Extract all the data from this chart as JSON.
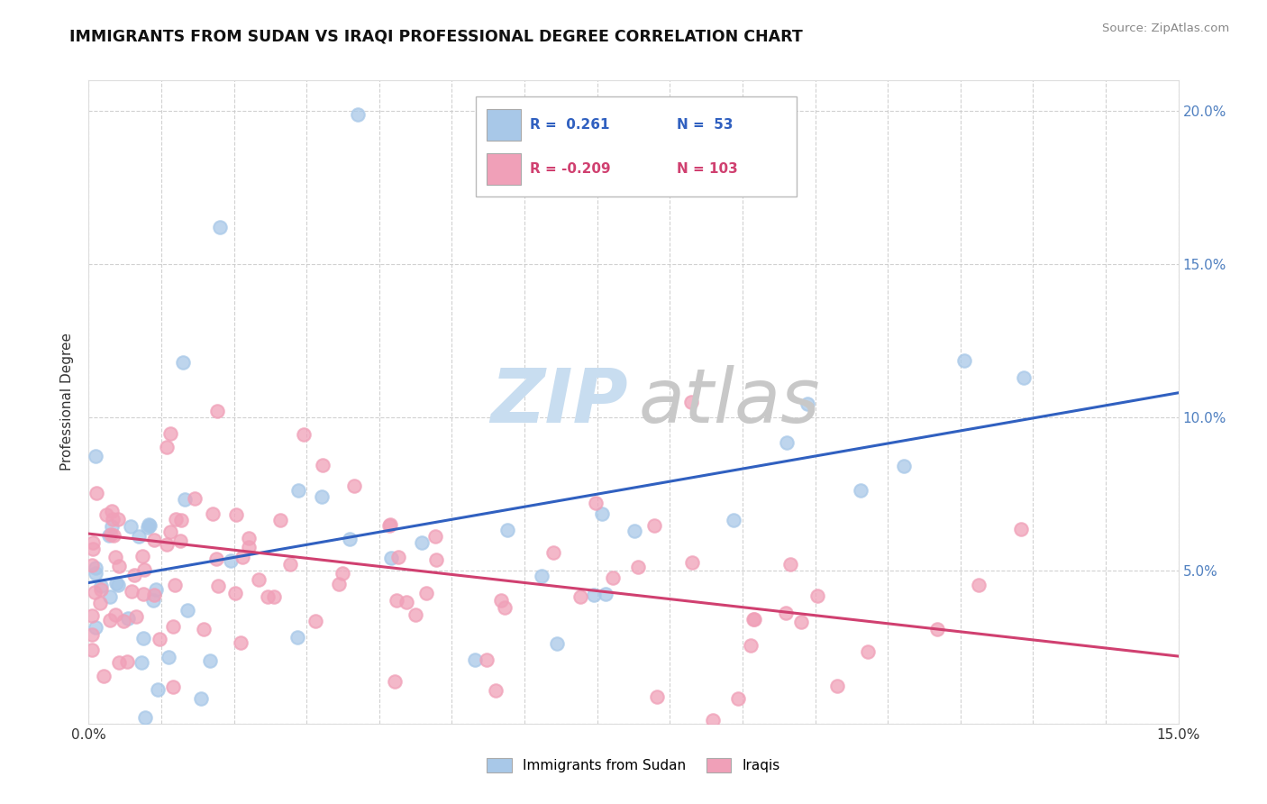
{
  "title": "IMMIGRANTS FROM SUDAN VS IRAQI PROFESSIONAL DEGREE CORRELATION CHART",
  "source": "Source: ZipAtlas.com",
  "ylabel": "Professional Degree",
  "xlim": [
    0.0,
    0.15
  ],
  "ylim": [
    0.0,
    0.21
  ],
  "sudan_color": "#a8c8e8",
  "iraqi_color": "#f0a0b8",
  "sudan_line_color": "#3060c0",
  "iraqi_line_color": "#d04070",
  "sudan_line_y0": 0.046,
  "sudan_line_y1": 0.108,
  "iraqi_line_y0": 0.062,
  "iraqi_line_y1": 0.022,
  "right_axis_color": "#5080c0",
  "watermark_zip_color": "#c8ddf0",
  "watermark_atlas_color": "#c8c8c8",
  "legend_r1": "R =  0.261",
  "legend_n1": "N =  53",
  "legend_r2": "R = -0.209",
  "legend_n2": "N = 103"
}
